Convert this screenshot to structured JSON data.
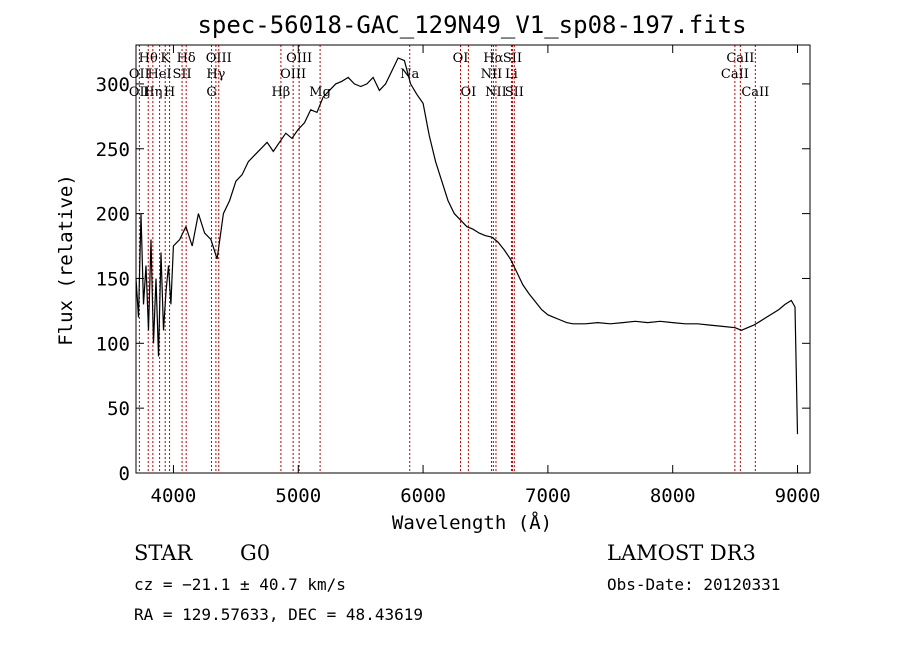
{
  "chart_data": {
    "type": "line",
    "title": "spec-56018-GAC_129N49_V1_sp08-197.fits",
    "xlabel": "Wavelength (Å)",
    "ylabel": "Flux (relative)",
    "xlim": [
      3700,
      9100
    ],
    "ylim": [
      0,
      330
    ],
    "xticks": [
      4000,
      5000,
      6000,
      7000,
      8000,
      9000
    ],
    "yticks": [
      0,
      50,
      100,
      150,
      200,
      250,
      300
    ],
    "xtick_labels": [
      "4000",
      "5000",
      "6000",
      "7000",
      "8000",
      "9000"
    ],
    "ytick_labels": [
      "0",
      "50",
      "100",
      "150",
      "200",
      "250",
      "300"
    ],
    "series": [
      {
        "name": "flux",
        "x": [
          3700,
          3720,
          3740,
          3760,
          3780,
          3800,
          3820,
          3840,
          3860,
          3880,
          3900,
          3920,
          3940,
          3960,
          3980,
          4000,
          4050,
          4100,
          4150,
          4200,
          4250,
          4300,
          4350,
          4400,
          4450,
          4500,
          4550,
          4600,
          4650,
          4700,
          4750,
          4800,
          4850,
          4900,
          4950,
          5000,
          5050,
          5100,
          5150,
          5200,
          5250,
          5300,
          5350,
          5400,
          5450,
          5500,
          5550,
          5600,
          5650,
          5700,
          5750,
          5800,
          5850,
          5900,
          5950,
          6000,
          6050,
          6100,
          6150,
          6200,
          6250,
          6300,
          6350,
          6400,
          6450,
          6500,
          6550,
          6600,
          6650,
          6700,
          6750,
          6800,
          6850,
          6900,
          6950,
          7000,
          7050,
          7100,
          7150,
          7200,
          7300,
          7400,
          7500,
          7600,
          7700,
          7800,
          7900,
          8000,
          8100,
          8200,
          8300,
          8400,
          8500,
          8550,
          8600,
          8650,
          8700,
          8750,
          8800,
          8850,
          8900,
          8950,
          8980,
          9000
        ],
        "values": [
          150,
          120,
          200,
          130,
          160,
          110,
          180,
          100,
          150,
          90,
          170,
          110,
          140,
          160,
          130,
          175,
          180,
          190,
          175,
          200,
          185,
          180,
          165,
          200,
          210,
          225,
          230,
          240,
          245,
          250,
          255,
          248,
          255,
          262,
          258,
          265,
          270,
          280,
          278,
          290,
          295,
          300,
          302,
          305,
          300,
          298,
          300,
          305,
          295,
          300,
          310,
          320,
          318,
          300,
          292,
          285,
          260,
          240,
          225,
          210,
          200,
          195,
          190,
          188,
          185,
          183,
          182,
          178,
          172,
          165,
          155,
          145,
          138,
          132,
          126,
          122,
          120,
          118,
          116,
          115,
          115,
          116,
          115,
          116,
          117,
          116,
          117,
          116,
          115,
          115,
          114,
          113,
          112,
          110,
          112,
          114,
          117,
          120,
          123,
          126,
          130,
          133,
          128,
          30
        ]
      }
    ],
    "line_labels": [
      {
        "text": "Hθ",
        "wavelength": 3798,
        "row": 1
      },
      {
        "text": "OII",
        "wavelength": 3727,
        "row": 2
      },
      {
        "text": "OII",
        "wavelength": 3727,
        "row": 3
      },
      {
        "text": "Hη",
        "wavelength": 3835,
        "row": 3
      },
      {
        "text": "K",
        "wavelength": 3934,
        "row": 1
      },
      {
        "text": "HeI",
        "wavelength": 3889,
        "row": 2
      },
      {
        "text": "H",
        "wavelength": 3969,
        "row": 3
      },
      {
        "text": "Hδ",
        "wavelength": 4102,
        "row": 1
      },
      {
        "text": "SII",
        "wavelength": 4069,
        "row": 2
      },
      {
        "text": "OIII",
        "wavelength": 4363,
        "row": 1
      },
      {
        "text": "Hγ",
        "wavelength": 4340,
        "row": 2
      },
      {
        "text": "G",
        "wavelength": 4305,
        "row": 3
      },
      {
        "text": "OIII",
        "wavelength": 5007,
        "row": 1
      },
      {
        "text": "OIII",
        "wavelength": 4959,
        "row": 2
      },
      {
        "text": "Hβ",
        "wavelength": 4861,
        "row": 3
      },
      {
        "text": "Mg",
        "wavelength": 5175,
        "row": 3
      },
      {
        "text": "Na",
        "wavelength": 5893,
        "row": 2
      },
      {
        "text": "OI",
        "wavelength": 6300,
        "row": 1
      },
      {
        "text": "OI",
        "wavelength": 6363,
        "row": 3
      },
      {
        "text": "Hα",
        "wavelength": 6563,
        "row": 1
      },
      {
        "text": "SII",
        "wavelength": 6716,
        "row": 1
      },
      {
        "text": "NII",
        "wavelength": 6548,
        "row": 2
      },
      {
        "text": "Li",
        "wavelength": 6708,
        "row": 2
      },
      {
        "text": "NII",
        "wavelength": 6584,
        "row": 3
      },
      {
        "text": "SII",
        "wavelength": 6731,
        "row": 3
      },
      {
        "text": "CaII",
        "wavelength": 8542,
        "row": 1
      },
      {
        "text": "CaII",
        "wavelength": 8498,
        "row": 2
      },
      {
        "text": "CaII",
        "wavelength": 8662,
        "row": 3
      }
    ],
    "line_marks": [
      3727,
      3798,
      3835,
      3889,
      3934,
      3969,
      4069,
      4102,
      4305,
      4340,
      4363,
      4861,
      4959,
      5007,
      5175,
      5893,
      6300,
      6363,
      6548,
      6563,
      6584,
      6708,
      6716,
      6731,
      8498,
      8542,
      8662
    ]
  },
  "info": {
    "object_class": "STAR",
    "subclass": "G0",
    "survey": "LAMOST DR3",
    "cz": "cz = −21.1 ± 40.7 km/s",
    "obs_date": "Obs-Date: 20120331",
    "coords": "RA = 129.57633, DEC =  48.43619"
  },
  "colors": {
    "axis": "#000000",
    "spectrum": "#000000",
    "marker": "#c00000"
  }
}
